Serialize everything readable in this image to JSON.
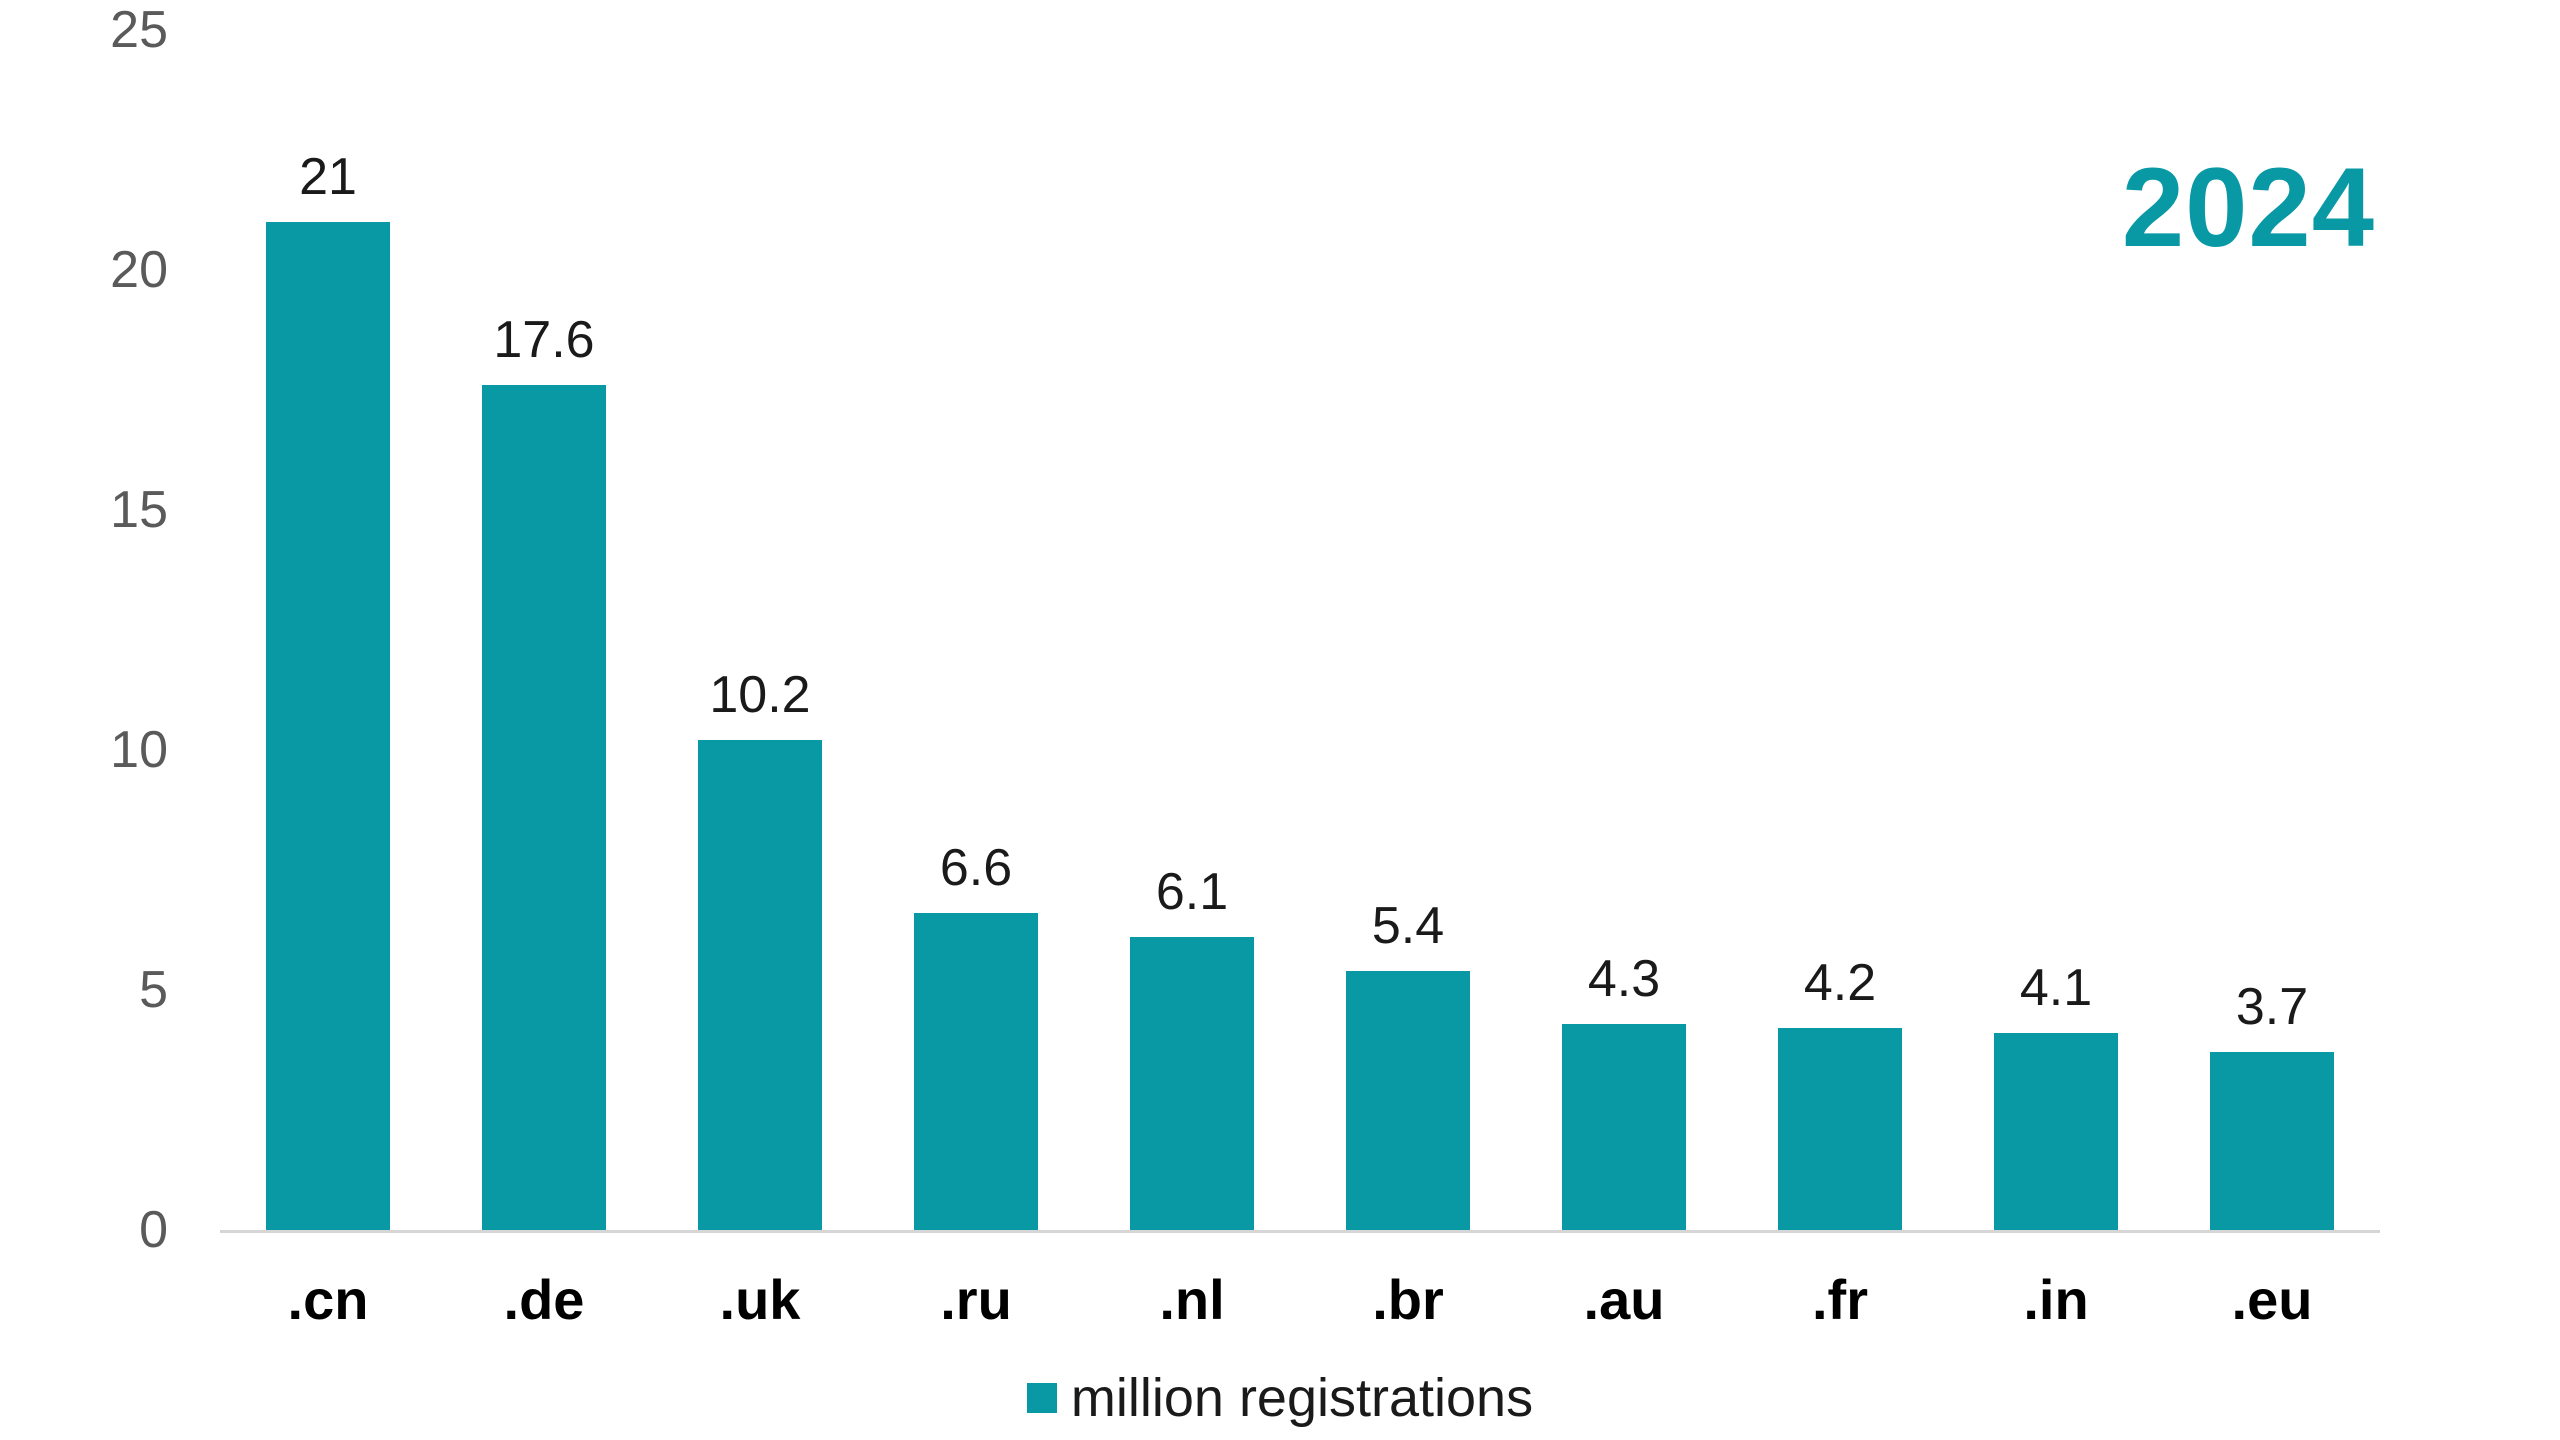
{
  "title": {
    "year": "2024"
  },
  "legend": {
    "label": "million registrations",
    "swatch_color": "#0899a4"
  },
  "colors": {
    "accent_teal": "#0899a4",
    "axis_label_gray": "#5a5a5a",
    "axis_line_gray": "#d6d6d6",
    "text_black": "#1a1a1a"
  },
  "chart_data": {
    "type": "bar",
    "title": "2024",
    "categories": [
      ".cn",
      ".de",
      ".uk",
      ".ru",
      ".nl",
      ".br",
      ".au",
      ".fr",
      ".in",
      ".eu"
    ],
    "values": [
      21,
      17.6,
      10.2,
      6.6,
      6.1,
      5.4,
      4.3,
      4.2,
      4.1,
      3.7
    ],
    "value_labels": [
      "21",
      "17.6",
      "10.2",
      "6.6",
      "6.1",
      "5.4",
      "4.3",
      "4.2",
      "4.1",
      "3.7"
    ],
    "series_name": "million registrations",
    "xlabel": "",
    "ylabel": "",
    "ylim": [
      0,
      25
    ],
    "y_ticks": [
      0,
      5,
      10,
      15,
      20,
      25
    ],
    "bar_color": "#0899a4",
    "grid": false,
    "legend_position": "bottom-center"
  }
}
